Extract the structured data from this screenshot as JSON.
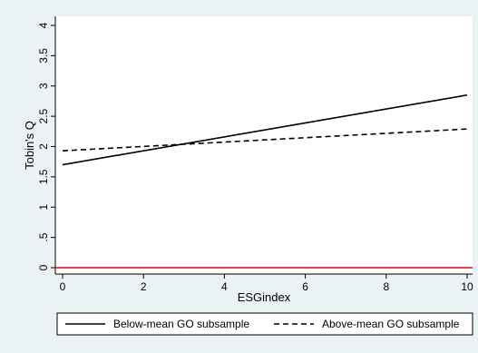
{
  "chart_data": {
    "type": "line",
    "xlabel": "ESGindex",
    "ylabel": "Tobin's Q",
    "xlim": [
      0,
      10
    ],
    "ylim": [
      0,
      4
    ],
    "x_ticks": [
      0,
      2,
      4,
      6,
      8,
      10
    ],
    "x_tick_labels": [
      "0",
      "2",
      "4",
      "6",
      "8",
      "10"
    ],
    "y_ticks": [
      0,
      0.5,
      1,
      1.5,
      2,
      2.5,
      3,
      3.5,
      4
    ],
    "y_tick_labels": [
      "0",
      ".5",
      "1",
      "1.5",
      "2",
      "2.5",
      "3",
      "3.5",
      "4"
    ],
    "grid": false,
    "legend_position": "bottom",
    "series": [
      {
        "name": "Below-mean GO subsample",
        "style": "solid",
        "color": "#000000",
        "x": [
          0,
          10
        ],
        "y": [
          1.7,
          2.85
        ]
      },
      {
        "name": "Above-mean GO subsample",
        "style": "dashed",
        "color": "#000000",
        "x": [
          0,
          10
        ],
        "y": [
          1.93,
          2.29
        ]
      }
    ],
    "reference_lines": [
      {
        "axis": "y",
        "value": 0,
        "color": "#ff0000"
      }
    ],
    "colors": {
      "background": "#eaf2f3",
      "plot_background": "#ffffff",
      "axis": "#000000"
    }
  }
}
